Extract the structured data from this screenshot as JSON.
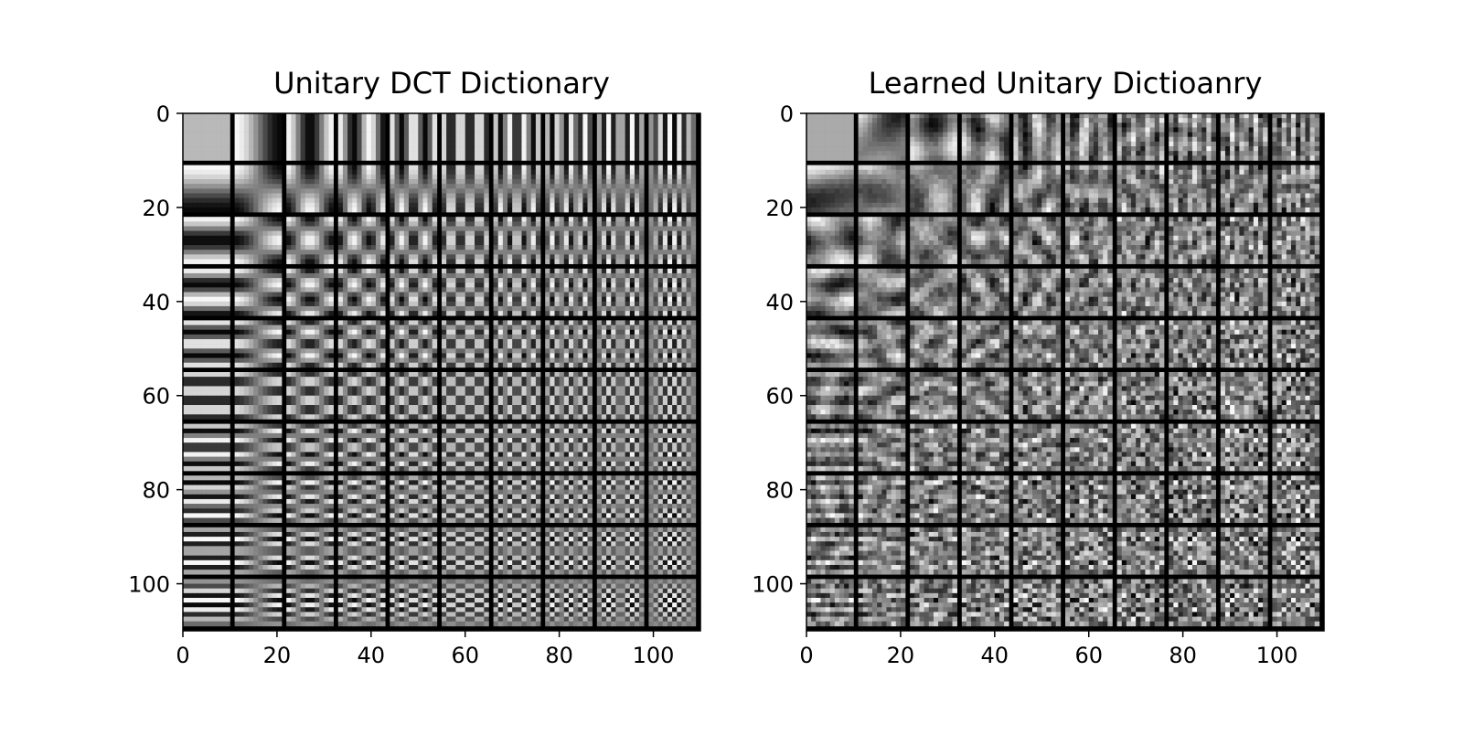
{
  "chart_data": [
    {
      "type": "heatmap",
      "title": "Unitary DCT Dictionary",
      "colormap": "gray",
      "grid": false,
      "xlim": [
        0,
        110
      ],
      "ylim": [
        110,
        0
      ],
      "xticks": [
        0,
        20,
        40,
        60,
        80,
        100
      ],
      "yticks": [
        0,
        20,
        40,
        60,
        80,
        100
      ],
      "xtick_labels": [
        "0",
        "20",
        "40",
        "60",
        "80",
        "100"
      ],
      "ytick_labels": [
        "0",
        "20",
        "40",
        "60",
        "80",
        "100"
      ],
      "atoms_grid": [
        10,
        10
      ],
      "atom_size": [
        10,
        10
      ],
      "separator_color": "#000000",
      "pattern": "2D DCT-II basis functions (horizontal frequency increases left to right, vertical frequency increases top to bottom)"
    },
    {
      "type": "heatmap",
      "title": "Learned Unitary Dictioanry",
      "colormap": "gray",
      "grid": false,
      "xlim": [
        0,
        110
      ],
      "ylim": [
        110,
        0
      ],
      "xticks": [
        0,
        20,
        40,
        60,
        80,
        100
      ],
      "yticks": [
        0,
        20,
        40,
        60,
        80,
        100
      ],
      "xtick_labels": [
        "0",
        "20",
        "40",
        "60",
        "80",
        "100"
      ],
      "ytick_labels": [
        "0",
        "20",
        "40",
        "60",
        "80",
        "100"
      ],
      "atoms_grid": [
        10,
        10
      ],
      "atom_size": [
        10,
        10
      ],
      "separator_color": "#000000",
      "pattern": "learned atoms: oriented, lower-contrast textures derived from DCT"
    }
  ]
}
